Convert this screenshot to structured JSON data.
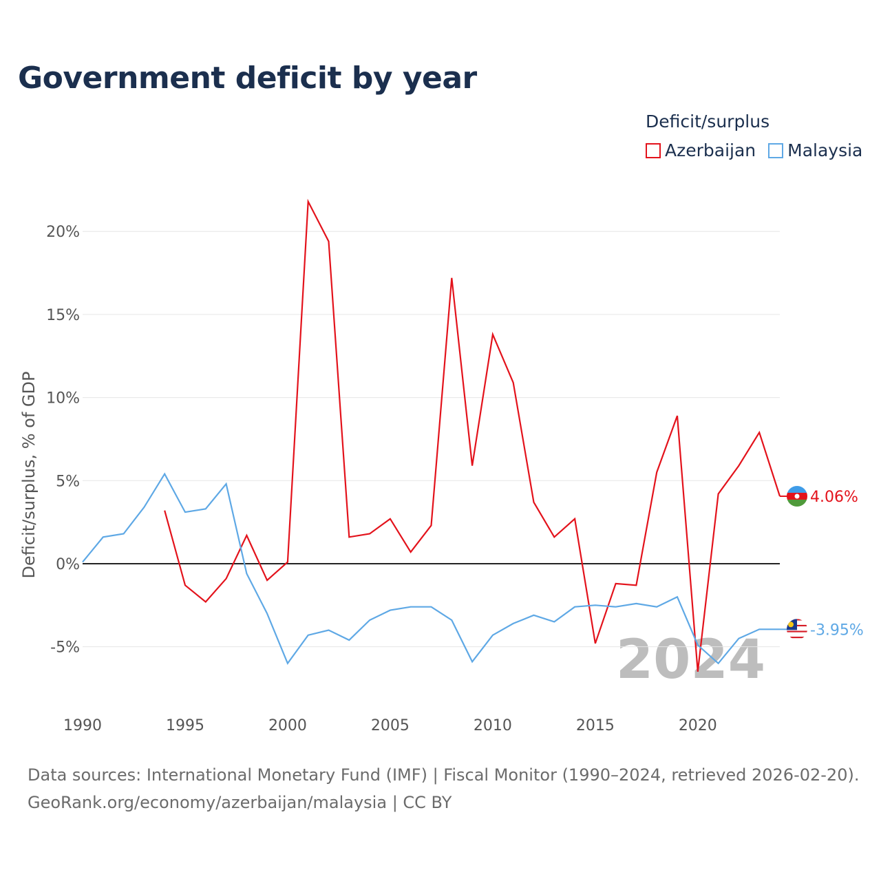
{
  "title": "Government deficit by year",
  "legend": {
    "title": "Deficit/surplus",
    "items": [
      {
        "name": "Azerbaijan",
        "color": "#e3121b"
      },
      {
        "name": "Malaysia",
        "color": "#5ea8e5"
      }
    ]
  },
  "source": {
    "line1": "Data sources: International Monetary Fund (IMF) | Fiscal Monitor (1990–2024, retrieved 2026-02-20).",
    "line2": "GeoRank.org/economy/azerbaijan/malaysia | CC BY"
  },
  "chart_data": {
    "type": "line",
    "title": "Government deficit by year",
    "xlabel": "",
    "ylabel": "Deficit/surplus, % of GDP",
    "xlim": [
      1990,
      2024
    ],
    "ylim": [
      -7.5,
      21.5
    ],
    "x_ticks": [
      1990,
      1995,
      2000,
      2005,
      2010,
      2015,
      2020
    ],
    "x_tick_labels": [
      "1990",
      "1995",
      "2000",
      "2005",
      "2010",
      "2015",
      "2020"
    ],
    "y_ticks": [
      -5,
      0,
      5,
      10,
      15,
      20
    ],
    "y_tick_labels": [
      "-5%",
      "0%",
      "5%",
      "10%",
      "15%",
      "20%"
    ],
    "grid": true,
    "watermark_year": "2024",
    "series": [
      {
        "name": "Azerbaijan",
        "color": "#e3121b",
        "end_label": "4.06%",
        "x": [
          1994,
          1995,
          1996,
          1997,
          1998,
          1999,
          2000,
          2001,
          2002,
          2003,
          2004,
          2005,
          2006,
          2007,
          2008,
          2009,
          2010,
          2011,
          2012,
          2013,
          2014,
          2015,
          2016,
          2017,
          2018,
          2019,
          2020,
          2021,
          2022,
          2023,
          2024
        ],
        "values": [
          3.2,
          -1.3,
          -2.3,
          -0.9,
          1.7,
          -1.0,
          0.1,
          21.8,
          19.4,
          1.6,
          1.8,
          2.7,
          0.7,
          2.3,
          17.2,
          5.9,
          13.8,
          10.9,
          3.7,
          1.6,
          2.7,
          -4.8,
          -1.2,
          -1.3,
          5.5,
          8.9,
          -6.5,
          4.2,
          5.9,
          7.9,
          4.06
        ]
      },
      {
        "name": "Malaysia",
        "color": "#5ea8e5",
        "end_label": "-3.95%",
        "x": [
          1990,
          1991,
          1992,
          1993,
          1994,
          1995,
          1996,
          1997,
          1998,
          1999,
          2000,
          2001,
          2002,
          2003,
          2004,
          2005,
          2006,
          2007,
          2008,
          2009,
          2010,
          2011,
          2012,
          2013,
          2014,
          2015,
          2016,
          2017,
          2018,
          2019,
          2020,
          2021,
          2022,
          2023,
          2024
        ],
        "values": [
          0.1,
          1.6,
          1.8,
          3.4,
          5.4,
          3.1,
          3.3,
          4.8,
          -0.6,
          -3.0,
          -6.0,
          -4.3,
          -4.0,
          -4.6,
          -3.4,
          -2.8,
          -2.6,
          -2.6,
          -3.4,
          -5.9,
          -4.3,
          -3.6,
          -3.1,
          -3.5,
          -2.6,
          -2.5,
          -2.6,
          -2.4,
          -2.6,
          -2.0,
          -4.9,
          -6.0,
          -4.5,
          -3.95,
          -3.95
        ]
      }
    ]
  }
}
